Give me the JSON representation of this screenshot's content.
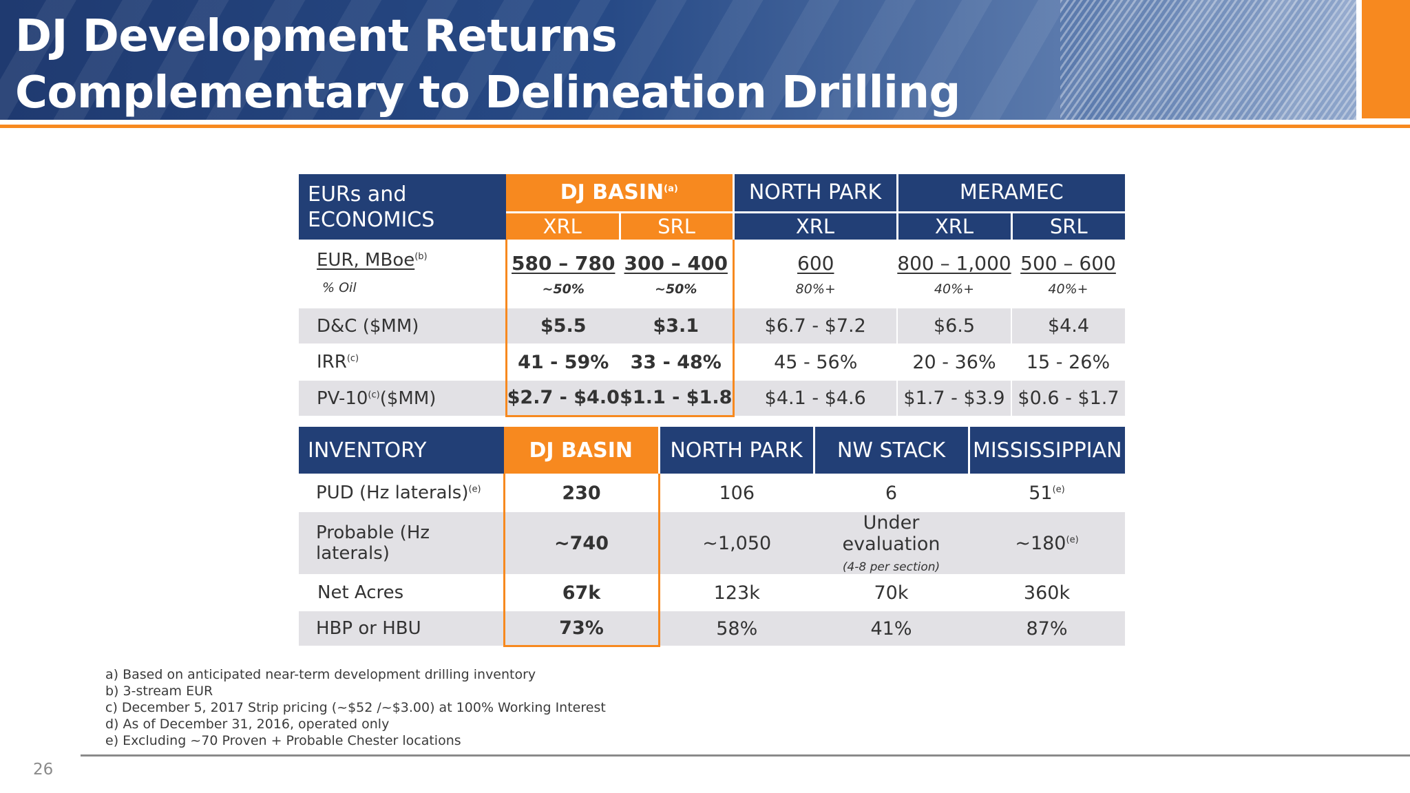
{
  "title": {
    "line1": "DJ Development Returns",
    "line2": "Complementary to Delineation Drilling"
  },
  "colors": {
    "navy": "#223f76",
    "orange": "#f7891f",
    "gray_row": "#e2e1e5"
  },
  "economics": {
    "corner_label_line1": "EURs and",
    "corner_label_line2": "ECONOMICS",
    "groups": {
      "dj_basin": "DJ BASIN",
      "dj_basin_note": "(a)",
      "north_park": "NORTH PARK",
      "meramec": "MERAMEC"
    },
    "subheads": [
      "XRL",
      "SRL",
      "XRL",
      "XRL",
      "SRL"
    ],
    "rows": {
      "eur": {
        "label": "EUR, MBoe",
        "note": "(b)",
        "values": [
          "580 – 780",
          "300 – 400",
          "600",
          "800 – 1,000",
          "500 – 600"
        ]
      },
      "oil": {
        "label": "% Oil",
        "values": [
          "~50%",
          "~50%",
          "80%+",
          "40%+",
          "40%+"
        ]
      },
      "dc": {
        "label": "D&C ($MM)",
        "values": [
          "$5.5",
          "$3.1",
          "$6.7 - $7.2",
          "$6.5",
          "$4.4"
        ]
      },
      "irr": {
        "label": "IRR",
        "note": "(c)",
        "values": [
          "41 - 59%",
          "33 - 48%",
          "45 - 56%",
          "20 - 36%",
          "15 - 26%"
        ]
      },
      "pv10": {
        "label_pre": "PV-10",
        "note": "(c)",
        "label_post": "($MM)",
        "values": [
          "$2.7 - $4.0",
          "$1.1 - $1.8",
          "$4.1 - $4.6",
          "$1.7 - $3.9",
          "$0.6 - $1.7"
        ]
      }
    }
  },
  "inventory": {
    "header": [
      "INVENTORY",
      "DJ BASIN",
      "NORTH PARK",
      "NW STACK",
      "MISSISSIPPIAN"
    ],
    "rows": {
      "pud": {
        "label": "PUD (Hz laterals)",
        "label_note": "(e)",
        "values": [
          "230",
          "106",
          "6",
          "51"
        ],
        "last_note": "(e)"
      },
      "probable": {
        "label": "Probable (Hz laterals)",
        "values": [
          "~740",
          "~1,050",
          "Under evaluation",
          "~180"
        ],
        "eval_sub": "(4-8 per section)",
        "last_note": "(e)"
      },
      "net_acres": {
        "label": "Net Acres",
        "values": [
          "67k",
          "123k",
          "70k",
          "360k"
        ]
      },
      "hbp": {
        "label": "HBP or HBU",
        "values": [
          "73%",
          "58%",
          "41%",
          "87%"
        ]
      }
    }
  },
  "footnotes": [
    "a) Based on anticipated near-term development drilling inventory",
    "b) 3-stream EUR",
    "c) December 5, 2017 Strip pricing (~$52 /~$3.00) at 100% Working Interest",
    "d) As of December 31, 2016, operated only",
    "e) Excluding ~70 Proven + Probable Chester locations"
  ],
  "page_number": "26"
}
